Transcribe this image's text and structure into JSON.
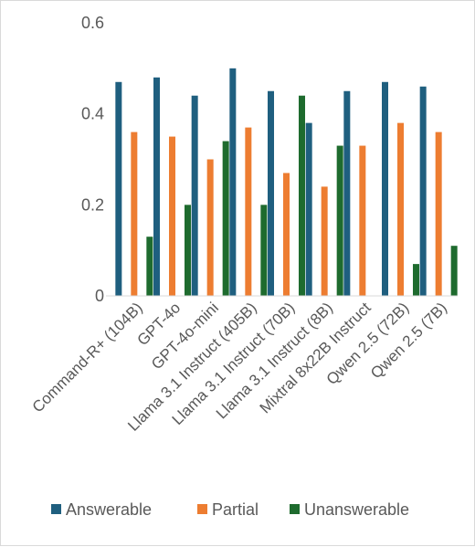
{
  "chart_data": {
    "type": "bar",
    "categories": [
      "Command-R+ (104B)",
      "GPT-4o",
      "GPT-4o-mini",
      "Llama 3.1 Instruct (405B)",
      "Llama 3.1 Instruct (70B)",
      "Llama 3.1 Instruct (8B)",
      "Mixtral 8x22B Instruct",
      "Qwen 2.5 (72B)",
      "Qwen 2.5 (7B)"
    ],
    "series": [
      {
        "name": "Answerable",
        "color": "#1f5f7f",
        "values": [
          0.47,
          0.48,
          0.44,
          0.5,
          0.45,
          0.38,
          0.45,
          0.47,
          0.46
        ]
      },
      {
        "name": "Partial",
        "color": "#ed7d31",
        "values": [
          0.36,
          0.35,
          0.3,
          0.37,
          0.27,
          0.24,
          0.33,
          0.38,
          0.36
        ]
      },
      {
        "name": "Unanswerable",
        "color": "#1e6b2e",
        "values": [
          0.13,
          0.2,
          0.34,
          0.2,
          0.44,
          0.33,
          0.0,
          0.07,
          0.11
        ]
      }
    ],
    "y_ticks": [
      "0",
      "0.2",
      "0.4",
      "0.6"
    ],
    "ylim": [
      0,
      0.6
    ],
    "grid": false,
    "legend_position": "bottom"
  }
}
